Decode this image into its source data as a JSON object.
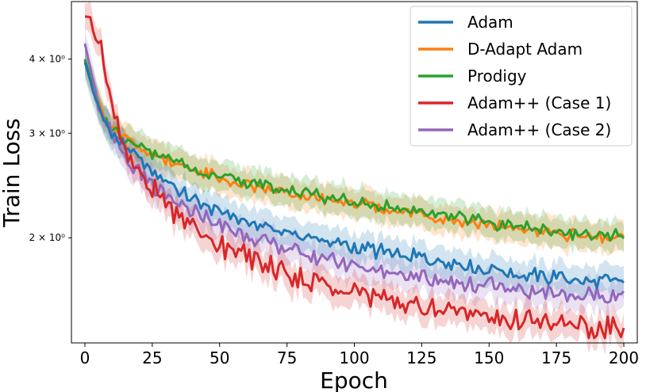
{
  "chart_data": {
    "type": "line",
    "xlabel": "Epoch",
    "ylabel": "Train Loss",
    "yscale": "log",
    "xlim": [
      -5,
      205
    ],
    "ylim": [
      1.33,
      5.0
    ],
    "xticks": [
      0,
      25,
      50,
      75,
      100,
      125,
      150,
      175,
      200
    ],
    "yticks": [
      {
        "value": 4,
        "label": "4 × 10⁰"
      },
      {
        "value": 3,
        "label": "3 × 10⁰"
      },
      {
        "value": 2,
        "label": "2 × 10⁰"
      }
    ],
    "grid": false,
    "legend_position": "top-right",
    "series": [
      {
        "name": "Adam",
        "color": "#1f77b4",
        "points": [
          [
            0,
            3.95
          ],
          [
            5,
            3.3
          ],
          [
            10,
            3.0
          ],
          [
            15,
            2.85
          ],
          [
            20,
            2.72
          ],
          [
            25,
            2.6
          ],
          [
            30,
            2.5
          ],
          [
            35,
            2.42
          ],
          [
            40,
            2.33
          ],
          [
            45,
            2.27
          ],
          [
            50,
            2.22
          ],
          [
            60,
            2.13
          ],
          [
            70,
            2.07
          ],
          [
            80,
            2.02
          ],
          [
            90,
            1.97
          ],
          [
            100,
            1.93
          ],
          [
            110,
            1.89
          ],
          [
            120,
            1.86
          ],
          [
            130,
            1.83
          ],
          [
            140,
            1.8
          ],
          [
            150,
            1.77
          ],
          [
            160,
            1.74
          ],
          [
            170,
            1.72
          ],
          [
            180,
            1.7
          ],
          [
            190,
            1.69
          ],
          [
            200,
            1.68
          ]
        ]
      },
      {
        "name": "D-Adapt Adam",
        "color": "#ff7f0e",
        "points": [
          [
            0,
            3.98
          ],
          [
            5,
            3.35
          ],
          [
            10,
            3.05
          ],
          [
            15,
            2.93
          ],
          [
            20,
            2.85
          ],
          [
            25,
            2.78
          ],
          [
            30,
            2.71
          ],
          [
            35,
            2.66
          ],
          [
            40,
            2.6
          ],
          [
            45,
            2.55
          ],
          [
            50,
            2.51
          ],
          [
            60,
            2.45
          ],
          [
            70,
            2.4
          ],
          [
            80,
            2.36
          ],
          [
            90,
            2.32
          ],
          [
            100,
            2.28
          ],
          [
            110,
            2.24
          ],
          [
            120,
            2.2
          ],
          [
            130,
            2.16
          ],
          [
            140,
            2.13
          ],
          [
            150,
            2.1
          ],
          [
            160,
            2.07
          ],
          [
            170,
            2.04
          ],
          [
            180,
            2.02
          ],
          [
            190,
            2.0
          ],
          [
            200,
            1.99
          ]
        ]
      },
      {
        "name": "Prodigy",
        "color": "#2ca02c",
        "points": [
          [
            0,
            4.0
          ],
          [
            5,
            3.35
          ],
          [
            10,
            3.06
          ],
          [
            15,
            2.94
          ],
          [
            20,
            2.86
          ],
          [
            25,
            2.79
          ],
          [
            30,
            2.72
          ],
          [
            35,
            2.67
          ],
          [
            40,
            2.62
          ],
          [
            45,
            2.57
          ],
          [
            50,
            2.53
          ],
          [
            60,
            2.47
          ],
          [
            70,
            2.42
          ],
          [
            80,
            2.38
          ],
          [
            90,
            2.34
          ],
          [
            100,
            2.3
          ],
          [
            110,
            2.26
          ],
          [
            120,
            2.22
          ],
          [
            130,
            2.18
          ],
          [
            140,
            2.15
          ],
          [
            150,
            2.12
          ],
          [
            160,
            2.09
          ],
          [
            170,
            2.06
          ],
          [
            180,
            2.04
          ],
          [
            190,
            2.02
          ],
          [
            200,
            2.01
          ]
        ]
      },
      {
        "name": "Adam++ (Case 1)",
        "color": "#d62728",
        "points": [
          [
            0,
            4.72
          ],
          [
            3,
            4.7
          ],
          [
            6,
            4.1
          ],
          [
            10,
            3.3
          ],
          [
            15,
            2.85
          ],
          [
            20,
            2.58
          ],
          [
            25,
            2.4
          ],
          [
            30,
            2.28
          ],
          [
            35,
            2.18
          ],
          [
            40,
            2.1
          ],
          [
            45,
            2.02
          ],
          [
            50,
            1.96
          ],
          [
            60,
            1.86
          ],
          [
            70,
            1.78
          ],
          [
            80,
            1.71
          ],
          [
            90,
            1.66
          ],
          [
            100,
            1.62
          ],
          [
            110,
            1.58
          ],
          [
            120,
            1.55
          ],
          [
            130,
            1.52
          ],
          [
            140,
            1.49
          ],
          [
            150,
            1.47
          ],
          [
            160,
            1.45
          ],
          [
            170,
            1.43
          ],
          [
            180,
            1.42
          ],
          [
            190,
            1.41
          ],
          [
            200,
            1.4
          ]
        ]
      },
      {
        "name": "Adam++ (Case 2)",
        "color": "#9467bd",
        "points": [
          [
            0,
            4.25
          ],
          [
            5,
            3.35
          ],
          [
            10,
            2.95
          ],
          [
            15,
            2.72
          ],
          [
            20,
            2.56
          ],
          [
            25,
            2.44
          ],
          [
            30,
            2.35
          ],
          [
            35,
            2.28
          ],
          [
            40,
            2.21
          ],
          [
            45,
            2.15
          ],
          [
            50,
            2.1
          ],
          [
            60,
            2.02
          ],
          [
            70,
            1.95
          ],
          [
            80,
            1.89
          ],
          [
            90,
            1.84
          ],
          [
            100,
            1.8
          ],
          [
            110,
            1.76
          ],
          [
            120,
            1.73
          ],
          [
            130,
            1.7
          ],
          [
            140,
            1.68
          ],
          [
            150,
            1.66
          ],
          [
            160,
            1.64
          ],
          [
            170,
            1.62
          ],
          [
            180,
            1.61
          ],
          [
            190,
            1.6
          ],
          [
            200,
            1.6
          ]
        ]
      }
    ]
  }
}
